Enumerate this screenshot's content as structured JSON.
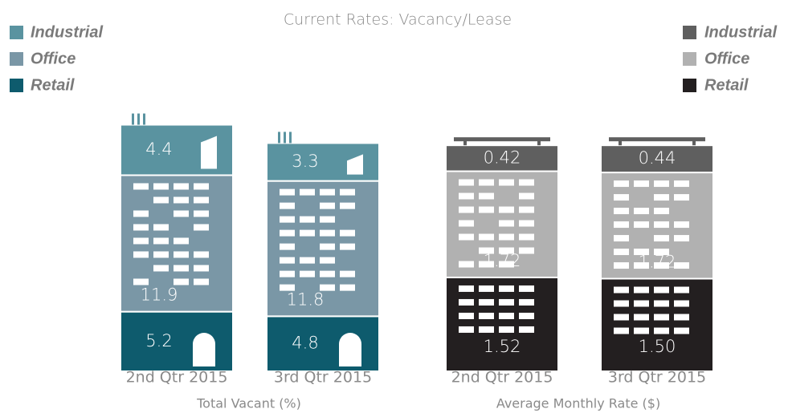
{
  "title": "Current Rates: Vacancy/Lease",
  "chart_data": [
    {
      "type": "stacked-bar",
      "xlabel": "Total Vacant (%)",
      "legend": "top-left",
      "categories": [
        "2nd Qtr 2015",
        "3rd Qtr 2015"
      ],
      "series": [
        {
          "name": "Industrial",
          "color": "#5a93a0",
          "values": [
            4.4,
            3.3
          ]
        },
        {
          "name": "Office",
          "color": "#7a97a6",
          "values": [
            11.9,
            11.8
          ]
        },
        {
          "name": "Retail",
          "color": "#0e5b6d",
          "values": [
            5.2,
            4.8
          ]
        }
      ]
    },
    {
      "type": "stacked-bar",
      "xlabel": "Average Monthly Rate ($)",
      "legend": "top-right",
      "categories": [
        "2nd Qtr 2015",
        "3rd Qtr 2015"
      ],
      "series": [
        {
          "name": "Industrial",
          "color": "#5f5f5f",
          "values": [
            0.42,
            0.44
          ]
        },
        {
          "name": "Office",
          "color": "#b1b1b1",
          "values": [
            1.72,
            1.72
          ]
        },
        {
          "name": "Retail",
          "color": "#231f20",
          "values": [
            1.52,
            1.5
          ],
          "value_labels": [
            "1.52",
            "1.50"
          ]
        }
      ]
    }
  ]
}
